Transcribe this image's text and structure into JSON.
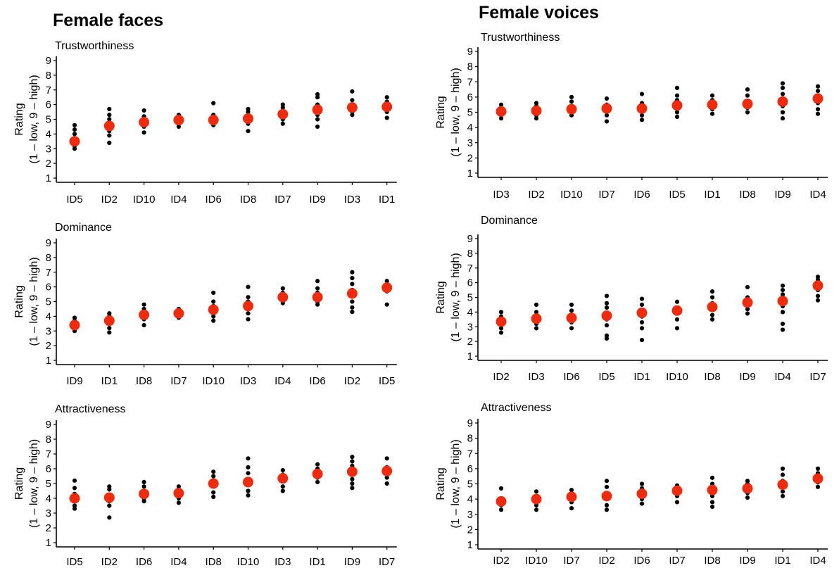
{
  "figure": {
    "columns": [
      {
        "title": "Female faces"
      },
      {
        "title": "Female voices"
      }
    ]
  },
  "colors": {
    "mean": "#ef2b0e",
    "individual": "#000000",
    "axis": "#000000"
  },
  "chart_data": [
    {
      "type": "scatter",
      "column": 0,
      "row": 0,
      "title": "Trustworthiness",
      "ylabel": "Rating",
      "ylabel_sub": "(1 – low, 9 – high)",
      "ylim": [
        1,
        9
      ],
      "yticks": [
        1,
        2,
        3,
        4,
        5,
        6,
        7,
        8,
        9
      ],
      "categories": [
        "ID5",
        "ID2",
        "ID10",
        "ID4",
        "ID6",
        "ID8",
        "ID7",
        "ID9",
        "ID3",
        "ID1"
      ],
      "means": [
        3.5,
        4.55,
        4.8,
        4.95,
        4.95,
        5.05,
        5.35,
        5.65,
        5.8,
        5.85
      ],
      "points": [
        [
          3.0,
          3.2,
          3.3,
          3.7,
          4.0,
          4.3,
          4.6
        ],
        [
          3.4,
          3.9,
          4.2,
          4.7,
          5.0,
          5.3,
          5.7
        ],
        [
          4.1,
          4.5,
          5.0,
          5.2,
          5.6
        ],
        [
          4.5,
          4.8,
          5.1,
          5.3
        ],
        [
          4.6,
          4.8,
          5.1,
          5.3,
          6.1
        ],
        [
          4.2,
          4.7,
          5.2,
          5.5,
          5.7
        ],
        [
          4.7,
          5.0,
          5.5,
          5.8,
          6.0
        ],
        [
          4.5,
          5.0,
          5.3,
          5.6,
          6.0,
          6.5,
          6.7
        ],
        [
          5.3,
          5.5,
          6.0,
          6.3,
          6.9
        ],
        [
          5.1,
          5.5,
          5.9,
          6.2,
          6.5
        ]
      ]
    },
    {
      "type": "scatter",
      "column": 0,
      "row": 1,
      "title": "Dominance",
      "ylabel": "Rating",
      "ylabel_sub": "(1 – low, 9 – high)",
      "ylim": [
        1,
        9
      ],
      "yticks": [
        1,
        2,
        3,
        4,
        5,
        6,
        7,
        8,
        9
      ],
      "categories": [
        "ID9",
        "ID1",
        "ID8",
        "ID7",
        "ID10",
        "ID3",
        "ID4",
        "ID6",
        "ID2",
        "ID5"
      ],
      "means": [
        3.4,
        3.7,
        4.1,
        4.2,
        4.45,
        4.7,
        5.3,
        5.3,
        5.55,
        5.95
      ],
      "points": [
        [
          3.0,
          3.2,
          3.5,
          3.7,
          3.9
        ],
        [
          2.9,
          3.2,
          3.6,
          4.0,
          4.2
        ],
        [
          3.4,
          3.8,
          4.2,
          4.5,
          4.8
        ],
        [
          3.9,
          4.1,
          4.3,
          4.5
        ],
        [
          3.7,
          4.0,
          4.3,
          4.7,
          5.0,
          5.6
        ],
        [
          3.8,
          4.2,
          4.6,
          5.0,
          5.3,
          6.0
        ],
        [
          4.9,
          5.1,
          5.4,
          5.6,
          5.9
        ],
        [
          4.8,
          5.0,
          5.3,
          5.6,
          5.9,
          6.4
        ],
        [
          4.3,
          4.6,
          5.0,
          5.4,
          5.8,
          6.2,
          6.6,
          7.0
        ],
        [
          4.8,
          5.7,
          6.1,
          6.4
        ]
      ]
    },
    {
      "type": "scatter",
      "column": 0,
      "row": 2,
      "title": "Attractiveness",
      "ylabel": "Rating",
      "ylabel_sub": "(1 – low, 9 – high)",
      "ylim": [
        1,
        9
      ],
      "yticks": [
        1,
        2,
        3,
        4,
        5,
        6,
        7,
        8,
        9
      ],
      "categories": [
        "ID5",
        "ID2",
        "ID6",
        "ID4",
        "ID8",
        "ID10",
        "ID3",
        "ID1",
        "ID9",
        "ID7"
      ],
      "means": [
        4.0,
        4.05,
        4.3,
        4.35,
        5.0,
        5.1,
        5.35,
        5.65,
        5.8,
        5.85
      ],
      "points": [
        [
          3.3,
          3.5,
          3.8,
          4.3,
          4.7,
          5.2
        ],
        [
          2.7,
          3.5,
          3.8,
          4.2,
          4.6,
          4.8
        ],
        [
          3.8,
          4.0,
          4.4,
          4.8,
          5.1
        ],
        [
          3.7,
          4.0,
          4.3,
          4.6,
          4.8
        ],
        [
          4.1,
          4.4,
          4.8,
          5.1,
          5.5,
          5.8
        ],
        [
          4.2,
          4.5,
          4.9,
          5.3,
          5.7,
          6.1,
          6.7
        ],
        [
          4.5,
          4.8,
          5.2,
          5.6,
          5.9
        ],
        [
          5.1,
          5.4,
          5.7,
          6.0,
          6.3
        ],
        [
          4.7,
          5.0,
          5.3,
          5.6,
          5.9,
          6.2,
          6.5,
          6.8
        ],
        [
          5.0,
          5.4,
          5.8,
          6.1,
          6.7
        ]
      ]
    },
    {
      "type": "scatter",
      "column": 1,
      "row": 0,
      "title": "Trustworthiness",
      "ylabel": "Rating",
      "ylabel_sub": "(1 – low, 9 – high)",
      "ylim": [
        1,
        9
      ],
      "yticks": [
        1,
        2,
        3,
        4,
        5,
        6,
        7,
        8,
        9
      ],
      "categories": [
        "ID3",
        "ID2",
        "ID10",
        "ID7",
        "ID6",
        "ID5",
        "ID1",
        "ID8",
        "ID9",
        "ID4"
      ],
      "means": [
        5.05,
        5.1,
        5.2,
        5.25,
        5.25,
        5.45,
        5.5,
        5.55,
        5.7,
        5.9
      ],
      "points": [
        [
          4.6,
          4.8,
          5.1,
          5.3,
          5.5
        ],
        [
          4.6,
          4.8,
          5.2,
          5.4,
          5.6
        ],
        [
          4.8,
          5.0,
          5.4,
          5.7,
          6.0
        ],
        [
          4.4,
          4.8,
          5.2,
          5.5,
          5.9
        ],
        [
          4.5,
          4.8,
          5.2,
          5.6,
          6.2
        ],
        [
          4.7,
          5.0,
          5.4,
          5.8,
          6.1,
          6.6
        ],
        [
          4.9,
          5.2,
          5.5,
          5.8,
          6.1
        ],
        [
          5.0,
          5.3,
          5.7,
          6.1,
          6.5
        ],
        [
          4.6,
          5.0,
          5.4,
          5.8,
          6.2,
          6.6,
          6.9
        ],
        [
          4.9,
          5.2,
          5.6,
          6.0,
          6.4,
          6.7
        ]
      ]
    },
    {
      "type": "scatter",
      "column": 1,
      "row": 1,
      "title": "Dominance",
      "ylabel": "Rating",
      "ylabel_sub": "(1 – low, 9 – high)",
      "ylim": [
        1,
        9
      ],
      "yticks": [
        1,
        2,
        3,
        4,
        5,
        6,
        7,
        8,
        9
      ],
      "categories": [
        "ID2",
        "ID3",
        "ID6",
        "ID5",
        "ID1",
        "ID10",
        "ID8",
        "ID9",
        "ID4",
        "ID7"
      ],
      "means": [
        3.35,
        3.55,
        3.6,
        3.75,
        3.95,
        4.1,
        4.35,
        4.65,
        4.75,
        5.8
      ],
      "points": [
        [
          2.6,
          2.9,
          3.3,
          3.7,
          4.0
        ],
        [
          2.9,
          3.2,
          3.6,
          4.0,
          4.5
        ],
        [
          2.9,
          3.3,
          3.7,
          4.1,
          4.5
        ],
        [
          2.2,
          2.4,
          3.1,
          3.5,
          3.9,
          4.3,
          4.6,
          5.1
        ],
        [
          2.1,
          2.9,
          3.3,
          3.7,
          4.1,
          4.5,
          4.9
        ],
        [
          2.9,
          3.5,
          3.9,
          4.3,
          4.7
        ],
        [
          3.5,
          3.8,
          4.2,
          4.6,
          5.0,
          5.4
        ],
        [
          3.9,
          4.2,
          4.6,
          5.0,
          5.7
        ],
        [
          2.8,
          3.2,
          4.0,
          4.4,
          4.8,
          5.2,
          5.5,
          5.8
        ],
        [
          4.8,
          5.1,
          5.5,
          5.9,
          6.2,
          6.4
        ]
      ]
    },
    {
      "type": "scatter",
      "column": 1,
      "row": 2,
      "title": "Attractiveness",
      "ylabel": "Rating",
      "ylabel_sub": "(1 – low, 9 – high)",
      "ylim": [
        1,
        9
      ],
      "yticks": [
        1,
        2,
        3,
        4,
        5,
        6,
        7,
        8,
        9
      ],
      "categories": [
        "ID2",
        "ID10",
        "ID7",
        "ID2",
        "ID6",
        "ID7",
        "ID8",
        "ID9",
        "ID1",
        "ID4"
      ],
      "means": [
        3.85,
        4.0,
        4.15,
        4.2,
        4.35,
        4.55,
        4.6,
        4.7,
        4.95,
        5.35
      ],
      "points": [
        [
          3.3,
          3.6,
          4.0,
          4.7
        ],
        [
          3.3,
          3.6,
          3.9,
          4.2,
          4.5
        ],
        [
          3.4,
          3.8,
          4.2,
          4.6
        ],
        [
          3.3,
          3.6,
          4.0,
          4.4,
          4.8,
          5.2
        ],
        [
          3.7,
          4.0,
          4.3,
          4.7,
          5.0
        ],
        [
          3.8,
          4.2,
          4.6,
          4.9
        ],
        [
          3.5,
          3.8,
          4.2,
          4.6,
          5.0,
          5.4
        ],
        [
          4.1,
          4.4,
          4.7,
          5.0,
          5.2
        ],
        [
          4.2,
          4.5,
          4.9,
          5.2,
          5.6,
          6.0
        ],
        [
          4.8,
          5.1,
          5.4,
          5.7,
          6.0
        ]
      ]
    }
  ]
}
